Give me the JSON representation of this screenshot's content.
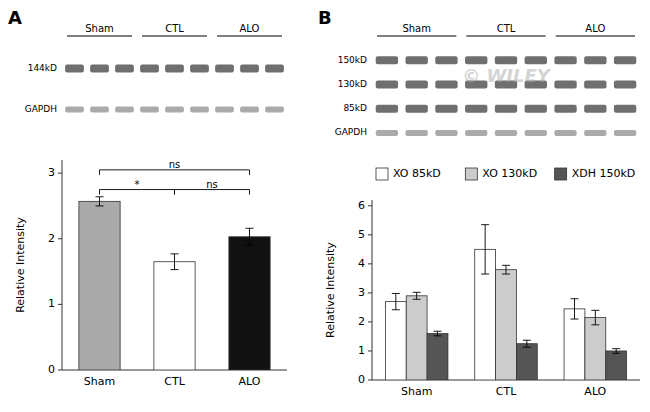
{
  "chart_data": [
    {
      "type": "bar",
      "title": "A",
      "categories": [
        "Sham",
        "CTL",
        "ALO"
      ],
      "values": [
        2.57,
        1.65,
        2.03
      ],
      "errors": [
        0.07,
        0.12,
        0.13
      ],
      "colors": [
        "#aaaaaa",
        "#ffffff",
        "#111111"
      ],
      "y_label": "Relative Intensity",
      "ylim": [
        0,
        3.2
      ],
      "yticks": [
        0,
        1,
        2,
        3
      ],
      "annotations": {
        "brackets": [
          {
            "from": "Sham",
            "to": "ALO",
            "y": 3.05,
            "text": "ns"
          },
          {
            "from": "Sham",
            "to": "CTL",
            "y": 2.75,
            "text": "*"
          },
          {
            "from": "CTL",
            "to": "ALO",
            "y": 2.75,
            "text": "ns"
          }
        ],
        "lane_groups": [
          "Sham",
          "CTL",
          "ALO"
        ],
        "band_rows": [
          "144kD",
          "GAPDH"
        ]
      }
    },
    {
      "type": "bar",
      "title": "B",
      "categories": [
        "Sham",
        "CTL",
        "ALO"
      ],
      "series": [
        {
          "name": "XO 85kD",
          "color": "#ffffff",
          "values": [
            2.7,
            4.5,
            2.45
          ],
          "errors": [
            0.28,
            0.85,
            0.35
          ]
        },
        {
          "name": "XO 130kD",
          "color": "#cccccc",
          "values": [
            2.9,
            3.8,
            2.15
          ],
          "errors": [
            0.12,
            0.15,
            0.25
          ]
        },
        {
          "name": "XDH 150kD",
          "color": "#555555",
          "values": [
            1.6,
            1.25,
            1.0
          ],
          "errors": [
            0.08,
            0.12,
            0.08
          ]
        }
      ],
      "y_label": "Relative Intensity",
      "ylim": [
        0,
        6.2
      ],
      "yticks": [
        0,
        1,
        2,
        3,
        4,
        5,
        6
      ],
      "legend": "top",
      "annotations": {
        "lane_groups": [
          "Sham",
          "CTL",
          "ALO"
        ],
        "band_rows": [
          "150kD",
          "130kD",
          "85kD",
          "GAPDH"
        ],
        "watermark": "© WILEY"
      }
    }
  ]
}
